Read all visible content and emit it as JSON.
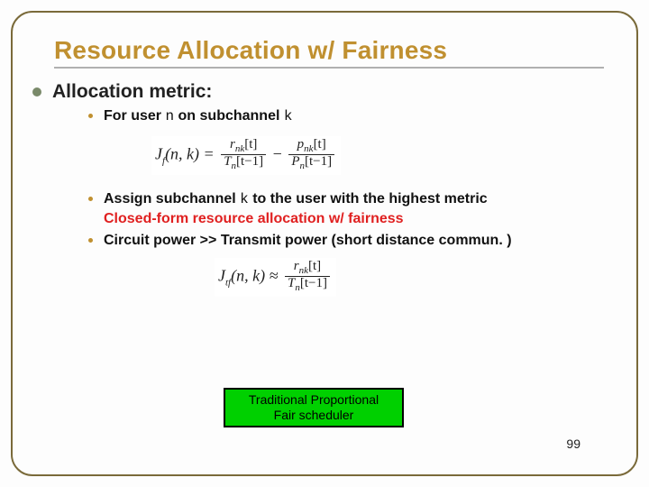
{
  "title": "Resource Allocation w/ Fairness",
  "heading": "Allocation metric:",
  "sub1_pre": "For user ",
  "sub1_n": "n",
  "sub1_mid": " on subchannel ",
  "sub1_k": "k",
  "eq1": {
    "lhs_J": "J",
    "lhs_sub": "f",
    "lhs_args": "(n, k) = ",
    "f1_num": "r",
    "f1_num_sub": "nk",
    "f1_num_bracket": "[t]",
    "f1_den": "T",
    "f1_den_sub": "n",
    "f1_den_bracket": "[t−1]",
    "minus": " − ",
    "f2_num": "p",
    "f2_num_sub": "nk",
    "f2_num_bracket": "[t]",
    "f2_den": "P",
    "f2_den_sub": "n",
    "f2_den_bracket": "[t−1]"
  },
  "sub2_pre": "Assign subchannel ",
  "sub2_k": "k",
  "sub2_post": " to the user with the highest metric",
  "red_line": "Closed-form resource allocation w/ fairness",
  "sub3": "Circuit power >> Transmit power (short distance commun. )",
  "eq2": {
    "lhs_J": "J",
    "lhs_sub": "tf",
    "lhs_args": "(n, k) ≈ ",
    "num": "r",
    "num_sub": "nk",
    "num_bracket": "[t]",
    "den": "T",
    "den_sub": "n",
    "den_bracket": "[t−1]"
  },
  "callout_l1": "Traditional Proportional",
  "callout_l2": "Fair scheduler",
  "page_num": "99",
  "colors": {
    "title": "#c09030",
    "border": "#7a6a3a",
    "bullet": "#7a8a6a",
    "sub_bullet": "#c09030",
    "red": "#e02020",
    "green": "#00d000"
  }
}
